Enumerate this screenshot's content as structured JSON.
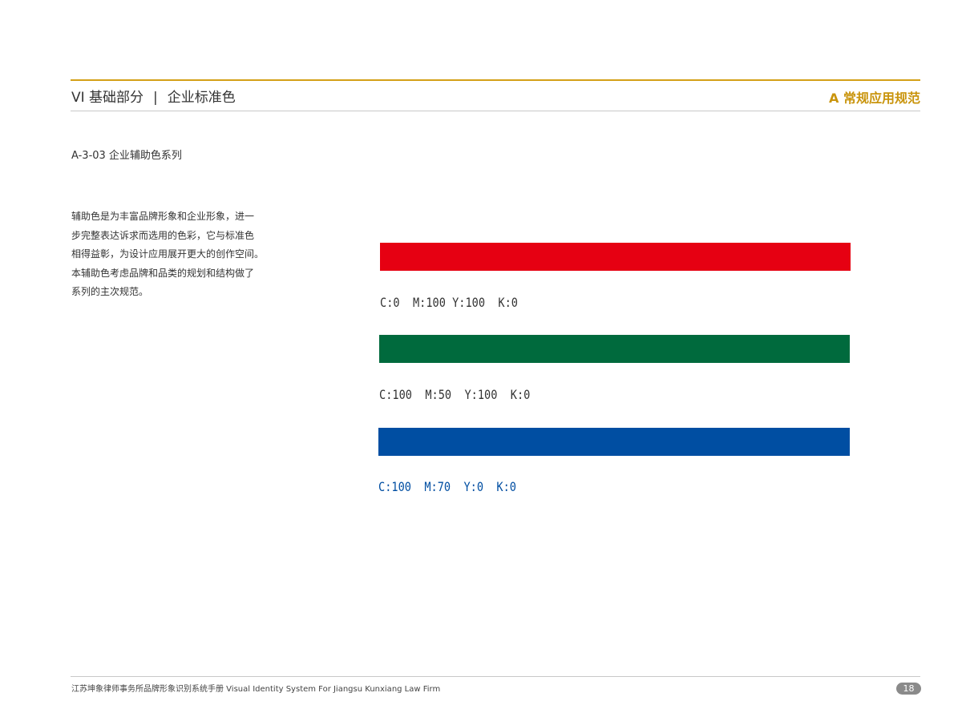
{
  "header": {
    "section": "VI 基础部分",
    "separator": "|",
    "topic": "企业标准色",
    "category": "A 常规应用规范"
  },
  "subtitle": "A-3-03 企业辅助色系列",
  "description_lines": [
    "辅助色是为丰富品牌形象和企业形象，进一",
    "步完整表达诉求而选用的色彩，它与标准色",
    "相得益彰，为设计应用展开更大的创作空间。",
    "本辅助色考虑品牌和品类的规划和结构做了",
    "系列的主次规范。"
  ],
  "colors": [
    {
      "name": "red",
      "hex": "#e60012",
      "label": "C:0  M:100 Y:100  K:0",
      "label_color": "#333333"
    },
    {
      "name": "green",
      "hex": "#006a3d",
      "label": "C:100  M:50  Y:100  K:0",
      "label_color": "#333333"
    },
    {
      "name": "blue",
      "hex": "#004ea2",
      "label": "C:100  M:70  Y:0  K:0",
      "label_color": "#004ea2"
    }
  ],
  "footer": {
    "text": "江苏坤象律师事务所品牌形象识别系统手册  Visual Identity System For Jiangsu Kunxiang Law Firm",
    "page_number": "18"
  },
  "accent_color": "#d4a017"
}
